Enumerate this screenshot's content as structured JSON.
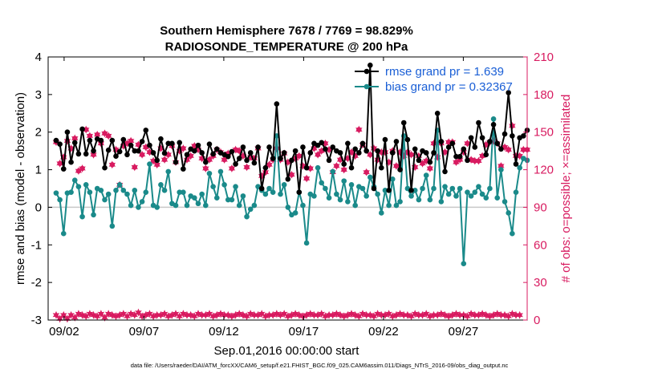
{
  "chart_data": {
    "type": "line",
    "title": "Southern Hemisphere 7678 / 7769 = 98.829%",
    "subtitle": "RADIOSONDE_TEMPERATURE @ 200 hPa",
    "xlabel": "Sep.01,2016 00:00:00 start",
    "ylabel": "rmse and bias (model - observation)",
    "y2label": "# of obs: o=possible; ×=assimilated",
    "footnote": "data file: /Users/raeder/DAI/ATM_forcXX/CAM6_setup/f.e21.FHIST_BGC.f09_025.CAM6assim.011/Diags_NTrS_2016-09/obs_diag_output.nc",
    "xlim": [
      1,
      31
    ],
    "ylim": [
      -3,
      4
    ],
    "y2lim": [
      0,
      210
    ],
    "x_ticks": [
      2,
      7,
      12,
      17,
      22,
      27
    ],
    "x_tick_labels": [
      "09/02",
      "09/07",
      "09/12",
      "09/17",
      "09/22",
      "09/27"
    ],
    "y_ticks": [
      -3,
      -2,
      -1,
      0,
      1,
      2,
      3,
      4
    ],
    "y2_ticks": [
      0,
      30,
      60,
      90,
      120,
      150,
      180,
      210
    ],
    "colors": {
      "rmse": "#000000",
      "bias": "#1a8a8a",
      "obs": "#d81b60",
      "zero_line": "#c9c9c9",
      "legend_text": "#1a5fd6"
    },
    "legend_position": "top-right",
    "series": [
      {
        "name": "rmse grand pr = 1.639",
        "values": [
          1.78,
          1.68,
          1.02,
          2.0,
          1.2,
          1.72,
          1.42,
          2.08,
          1.42,
          1.78,
          1.5,
          1.82,
          1.78,
          1.05,
          1.52,
          1.78,
          1.36,
          1.48,
          1.8,
          1.4,
          1.65,
          1.5,
          1.5,
          1.75,
          2.05,
          1.65,
          1.45,
          1.25,
          1.82,
          1.44,
          1.7,
          1.7,
          1.2,
          1.72,
          1.02,
          1.4,
          1.55,
          1.5,
          1.65,
          1.45,
          1.2,
          1.68,
          1.42,
          1.55,
          1.45,
          1.4,
          1.35,
          1.48,
          1.15,
          1.3,
          1.6,
          1.25,
          1.45,
          1.18,
          1.6,
          0.5,
          1.05,
          1.6,
          1.3,
          2.75,
          1.3,
          1.45,
          0.75,
          1.25,
          1.5,
          0.4,
          1.6,
          1.05,
          1.45,
          1.7,
          1.65,
          1.72,
          1.55,
          1.25,
          1.6,
          1.5,
          1.45,
          1.15,
          1.7,
          1.05,
          1.55,
          1.45,
          1.7,
          1.5,
          3.78,
          0.5,
          1.5,
          1.05,
          1.8,
          0.45,
          1.45,
          1.75,
          1.0,
          2.25,
          1.8,
          0.45,
          1.55,
          1.25,
          1.5,
          1.45,
          1.2,
          1.45,
          2.5,
          1.75,
          0.95,
          1.6,
          1.7,
          1.35,
          1.35,
          1.55,
          1.25,
          1.85,
          1.6,
          2.25,
          1.85,
          1.4,
          1.75,
          2.2,
          1.7,
          1.55,
          1.95,
          3.05,
          1.9,
          1.15,
          1.85,
          1.9,
          2.05
        ]
      },
      {
        "name": "bias grand pr = 0.32367",
        "values": [
          0.38,
          0.2,
          -0.7,
          0.38,
          0.4,
          0.72,
          0.55,
          -0.25,
          0.6,
          0.4,
          -0.2,
          0.5,
          0.45,
          0.2,
          0.35,
          -0.5,
          0.45,
          0.6,
          0.45,
          0.35,
          0.05,
          0.45,
          0.0,
          0.15,
          0.4,
          1.15,
          0.05,
          0.0,
          0.6,
          0.45,
          0.95,
          0.1,
          0.05,
          0.4,
          0.4,
          0.05,
          0.3,
          0.25,
          0.1,
          0.35,
          0.05,
          0.9,
          0.55,
          0.25,
          0.95,
          0.6,
          0.2,
          0.2,
          0.55,
          0.05,
          0.3,
          -0.25,
          -0.05,
          0.05,
          0.55,
          0.45,
          0.35,
          0.5,
          0.4,
          1.9,
          0.35,
          0.6,
          0.0,
          -0.2,
          -0.15,
          0.4,
          0.05,
          -0.95,
          0.35,
          0.3,
          1.05,
          0.65,
          0.5,
          0.25,
          0.95,
          0.35,
          0.2,
          0.7,
          0.15,
          0.6,
          0.05,
          0.55,
          0.5,
          0.3,
          0.8,
          0.55,
          0.35,
          -0.15,
          0.45,
          0.05,
          0.75,
          0.05,
          0.15,
          1.9,
          0.5,
          0.3,
          0.45,
          0.2,
          0.5,
          0.85,
          0.2,
          0.5,
          2.05,
          0.15,
          0.55,
          0.35,
          0.5,
          0.3,
          0.5,
          -1.5,
          0.4,
          0.3,
          0.4,
          0.55,
          0.35,
          0.25,
          0.5,
          2.35,
          0.25,
          1.0,
          0.15,
          -0.15,
          -0.7,
          0.4,
          1.05,
          1.3,
          1.25
        ]
      }
    ],
    "obs_counts": {
      "possible": [
        4,
        1,
        4,
        1,
        4,
        2,
        5,
        4,
        3,
        5,
        4,
        3,
        5,
        2,
        5,
        4,
        3,
        4,
        5,
        3,
        5,
        4,
        6,
        3,
        4,
        5,
        3,
        4,
        4,
        5,
        3,
        4,
        5,
        3,
        5,
        4,
        4,
        3,
        5,
        4,
        4,
        5,
        3,
        4,
        5,
        4,
        4,
        3,
        4,
        5,
        4,
        3,
        5,
        4,
        4,
        5,
        3,
        4,
        4,
        5,
        4,
        5,
        3,
        4,
        5,
        4,
        3,
        4,
        5,
        4,
        4,
        5,
        3,
        4,
        4,
        5,
        4,
        3,
        4,
        5,
        4,
        3,
        5,
        4,
        4,
        3,
        5,
        4,
        4,
        5,
        3,
        4,
        5,
        4,
        4,
        3,
        5,
        4,
        4,
        5,
        3,
        4,
        4,
        5,
        4,
        3,
        4,
        5,
        4,
        4,
        3,
        5,
        4,
        4,
        5,
        4,
        3,
        4,
        5,
        4,
        4,
        3,
        5,
        4,
        4
      ],
      "assimilated": [
        4,
        1,
        4,
        1,
        4,
        2,
        5,
        4,
        3,
        5,
        4,
        3,
        5,
        2,
        5,
        4,
        3,
        4,
        5,
        3,
        5,
        4,
        6,
        3,
        4,
        5,
        3,
        4,
        4,
        5,
        3,
        4,
        5,
        3,
        5,
        4,
        4,
        3,
        5,
        4,
        4,
        5,
        3,
        4,
        5,
        4,
        4,
        3,
        4,
        5,
        4,
        3,
        5,
        4,
        4,
        5,
        3,
        4,
        4,
        5,
        4,
        5,
        3,
        4,
        5,
        4,
        3,
        4,
        5,
        4,
        4,
        5,
        3,
        4,
        4,
        5,
        4,
        3,
        4,
        5,
        4,
        3,
        5,
        4,
        4,
        3,
        5,
        4,
        4,
        5,
        3,
        4,
        5,
        4,
        4,
        3,
        5,
        4,
        4,
        5,
        3,
        4,
        4,
        5,
        4,
        3,
        4,
        5,
        4,
        4,
        3,
        5,
        4,
        4,
        5,
        4,
        3,
        4,
        5,
        4,
        4,
        3,
        5,
        4,
        4
      ],
      "possible_upper": [
        142,
        125,
        130,
        143,
        137,
        145,
        119,
        121,
        152,
        147,
        132,
        148,
        141,
        149,
        147,
        124,
        136,
        108,
        139,
        141,
        143,
        122,
        140,
        132,
        138,
        134,
        127,
        124,
        137,
        128,
        132,
        139,
        126,
        135,
        137,
        128,
        131,
        139,
        136,
        129,
        121,
        128,
        131,
        136,
        134,
        128,
        133,
        121,
        136,
        135,
        131,
        122,
        130,
        129,
        137,
        115,
        118,
        124,
        128,
        137,
        128,
        133,
        126,
        116,
        129,
        131,
        123,
        113,
        121,
        137,
        132,
        135,
        141,
        136,
        118,
        123,
        128,
        120,
        129,
        134,
        131,
        152,
        140,
        118,
        132,
        137,
        128,
        134,
        134,
        126,
        135,
        123,
        134,
        131,
        134,
        132,
        122,
        131,
        125,
        127,
        121,
        141,
        130,
        141,
        134,
        142,
        142,
        126,
        128,
        134,
        141,
        128,
        127,
        127,
        131,
        140,
        142,
        143,
        141,
        123,
        138,
        136,
        155,
        131,
        131,
        136,
        136
      ]
    }
  }
}
